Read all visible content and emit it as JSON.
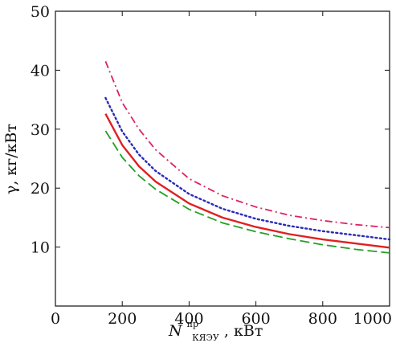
{
  "chart_data": {
    "type": "line",
    "xlim": [
      0,
      1000
    ],
    "ylim": [
      0,
      50
    ],
    "xticks": [
      0,
      200,
      400,
      600,
      800,
      1000
    ],
    "yticks": [
      10,
      20,
      30,
      40,
      50
    ],
    "ylabel": "γ, кг/кВт",
    "xlabel": {
      "symbol": "N",
      "superscript": "пр",
      "subscript": "КЯЭУ",
      "unit": ", кВт"
    },
    "grid": false,
    "legend": "none",
    "series": [
      {
        "color": "#dd2266",
        "style": "dash-dot",
        "x": [
          150,
          200,
          250,
          300,
          400,
          500,
          600,
          700,
          800,
          900,
          1000
        ],
        "y": [
          41.5,
          34.5,
          30.0,
          26.5,
          21.6,
          18.7,
          16.8,
          15.4,
          14.5,
          13.8,
          13.3
        ]
      },
      {
        "color": "#2a2ab8",
        "style": "dotted",
        "x": [
          150,
          200,
          250,
          300,
          400,
          500,
          600,
          700,
          800,
          900,
          1000
        ],
        "y": [
          35.3,
          29.6,
          25.7,
          22.9,
          19.0,
          16.5,
          14.8,
          13.6,
          12.7,
          12.0,
          11.3
        ]
      },
      {
        "color": "#e02020",
        "style": "solid",
        "x": [
          150,
          200,
          250,
          300,
          400,
          500,
          600,
          700,
          800,
          900,
          1000
        ],
        "y": [
          32.6,
          27.3,
          23.7,
          21.1,
          17.4,
          15.0,
          13.4,
          12.2,
          11.3,
          10.6,
          9.9
        ]
      },
      {
        "color": "#23a023",
        "style": "dashed",
        "x": [
          150,
          200,
          250,
          300,
          400,
          500,
          600,
          700,
          800,
          900,
          1000
        ],
        "y": [
          29.7,
          25.2,
          22.1,
          19.8,
          16.4,
          14.1,
          12.6,
          11.4,
          10.4,
          9.6,
          9.0
        ]
      }
    ]
  }
}
